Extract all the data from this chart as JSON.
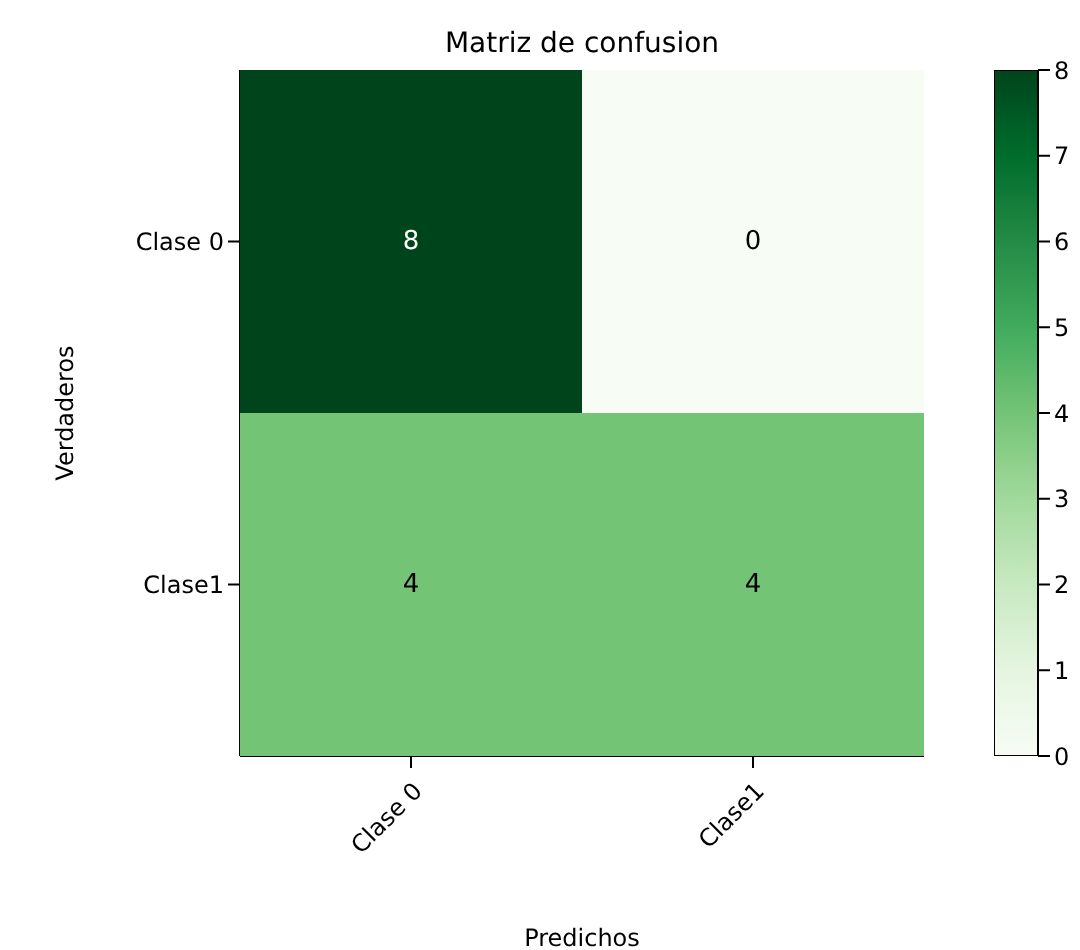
{
  "chart_data": {
    "type": "heatmap",
    "title": "Matriz de confusion",
    "xlabel": "Predichos",
    "ylabel": "Verdaderos",
    "categories": [
      "Clase 0",
      "Clase1"
    ],
    "y_categories": [
      "Clase 0",
      "Clase1"
    ],
    "cells": [
      [
        8,
        0
      ],
      [
        4,
        4
      ]
    ],
    "data_labels": true,
    "clim": [
      0,
      8
    ],
    "cticks": [
      0,
      1,
      2,
      3,
      4,
      5,
      6,
      7,
      8
    ]
  }
}
